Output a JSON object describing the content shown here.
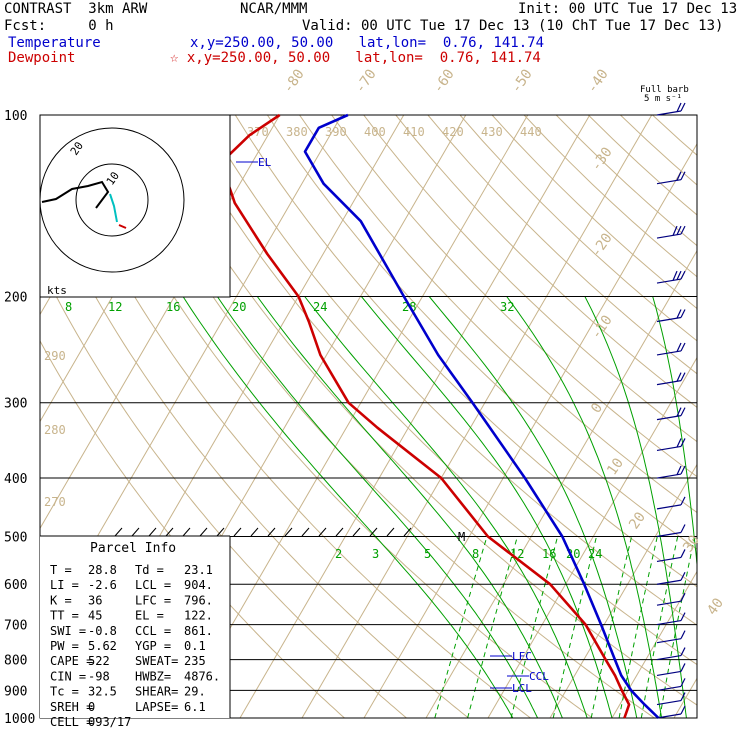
{
  "header": {
    "model": "CONTRAST  3km ARW",
    "center": "NCAR/MMM",
    "init": "Init: 00 UTC Tue 17 Dec 13",
    "fcst": "Fcst:     0 h",
    "valid": "Valid: 00 UTC Tue 17 Dec 13 (10 ChT Tue 17 Dec 13)",
    "temp_label": "Temperature",
    "temp_loc": "x,y=250.00, 50.00   lat,lon=  0.76, 141.74",
    "dew_label": "Dewpoint",
    "dew_loc": "☆ x,y=250.00, 50.00   lat,lon=  0.76, 141.74",
    "barb_title_1": "Full barb",
    "barb_title_2": "5 m s⁻¹"
  },
  "colors": {
    "temperature": "#0000cc",
    "dewpoint": "#cc0000",
    "isotherm": "#c8b48c",
    "dry_adiabat": "#c8b48c",
    "moist_adiabat": "#00a000",
    "mixing_ratio": "#00a000",
    "isobar": "#000000",
    "wind_barb": "#000080"
  },
  "chart_data": {
    "type": "skew-t",
    "pressure_levels": [
      100,
      200,
      300,
      400,
      500,
      600,
      700,
      800,
      900,
      1000
    ],
    "isotherm_labels": [
      "-80",
      "-70",
      "-60",
      "-50",
      "-40",
      "-30",
      "-20",
      "-10",
      "0",
      "10",
      "20",
      "30",
      "40"
    ],
    "theta_labels": [
      "370",
      "380",
      "390",
      "400",
      "410",
      "420",
      "430",
      "440"
    ],
    "theta_left_labels": [
      "290",
      "280",
      "270"
    ],
    "moist_labels": [
      "8",
      "12",
      "16",
      "20",
      "24",
      "28",
      "32"
    ],
    "mixing_labels": [
      "2",
      "3",
      "5",
      "8",
      "12",
      "16",
      "20",
      "24"
    ],
    "temperature": [
      {
        "p": 1000,
        "t": 27.5
      },
      {
        "p": 950,
        "t": 24.0
      },
      {
        "p": 900,
        "t": 20.5
      },
      {
        "p": 850,
        "t": 17.5
      },
      {
        "p": 800,
        "t": 15.0
      },
      {
        "p": 700,
        "t": 9.5
      },
      {
        "p": 600,
        "t": 3.0
      },
      {
        "p": 500,
        "t": -5.0
      },
      {
        "p": 400,
        "t": -16.5
      },
      {
        "p": 300,
        "t": -32.0
      },
      {
        "p": 250,
        "t": -42.0
      },
      {
        "p": 200,
        "t": -53.0
      },
      {
        "p": 150,
        "t": -67.0
      },
      {
        "p": 130,
        "t": -76.5
      },
      {
        "p": 115,
        "t": -82.5
      },
      {
        "p": 105,
        "t": -82.5
      },
      {
        "p": 100,
        "t": -79.0
      }
    ],
    "dewpoint": [
      {
        "p": 1000,
        "t": 22.0
      },
      {
        "p": 950,
        "t": 21.5
      },
      {
        "p": 900,
        "t": 19.0
      },
      {
        "p": 850,
        "t": 16.5
      },
      {
        "p": 800,
        "t": 13.5
      },
      {
        "p": 700,
        "t": 7.0
      },
      {
        "p": 600,
        "t": -2.5
      },
      {
        "p": 500,
        "t": -17.0
      },
      {
        "p": 400,
        "t": -30.0
      },
      {
        "p": 330,
        "t": -45.0
      },
      {
        "p": 300,
        "t": -52.0
      },
      {
        "p": 250,
        "t": -61.0
      },
      {
        "p": 220,
        "t": -66.0
      },
      {
        "p": 200,
        "t": -70.0
      },
      {
        "p": 170,
        "t": -79.0
      },
      {
        "p": 140,
        "t": -89.0
      },
      {
        "p": 120,
        "t": -95.0
      },
      {
        "p": 108,
        "t": -93.0
      },
      {
        "p": 100,
        "t": -90.0
      }
    ],
    "markers": [
      {
        "label": "EL",
        "p": 122
      },
      {
        "label": "LFC",
        "p": 796
      },
      {
        "label": "CCL",
        "p": 861
      },
      {
        "label": "LCL",
        "p": 904
      }
    ],
    "freezing_mark": {
      "label": "M",
      "p": 500
    },
    "hodograph": {
      "ring_labels": [
        "20",
        "10"
      ],
      "unit_label": "kts"
    },
    "wind_barbs": [
      {
        "p": 100,
        "speed": 12
      },
      {
        "p": 130,
        "speed": 12
      },
      {
        "p": 160,
        "speed": 13
      },
      {
        "p": 190,
        "speed": 15
      },
      {
        "p": 220,
        "speed": 12
      },
      {
        "p": 250,
        "speed": 10
      },
      {
        "p": 280,
        "speed": 9
      },
      {
        "p": 320,
        "speed": 10
      },
      {
        "p": 360,
        "speed": 10
      },
      {
        "p": 400,
        "speed": 8
      },
      {
        "p": 450,
        "speed": 7
      },
      {
        "p": 500,
        "speed": 6
      },
      {
        "p": 550,
        "speed": 5
      },
      {
        "p": 600,
        "speed": 5
      },
      {
        "p": 650,
        "speed": 5
      },
      {
        "p": 700,
        "speed": 4
      },
      {
        "p": 750,
        "speed": 4
      },
      {
        "p": 800,
        "speed": 4
      },
      {
        "p": 850,
        "speed": 5
      },
      {
        "p": 900,
        "speed": 6
      },
      {
        "p": 950,
        "speed": 7
      },
      {
        "p": 1000,
        "speed": 6
      }
    ]
  },
  "parcel_info": {
    "title": "Parcel Info",
    "rows": [
      [
        "T   =",
        "28.8",
        "Td =",
        "23.1"
      ],
      [
        "LI  =",
        "-2.6",
        "LCL =",
        "904."
      ],
      [
        "K   =",
        "36",
        "LFC =",
        "796."
      ],
      [
        "TT  =",
        "45",
        "EL  =",
        "122."
      ],
      [
        "SWI =",
        "-0.8",
        "CCL =",
        "861."
      ],
      [
        "PW  =",
        "5.62",
        "YGP =",
        "0.1"
      ],
      [
        "CAPE =",
        "522",
        "SWEAT=",
        "235"
      ],
      [
        "CIN =",
        "-98",
        "HWBZ=",
        "4876."
      ],
      [
        "Tc  =",
        "32.5",
        "SHEAR=",
        "29."
      ],
      [
        "SREH =",
        "0",
        "LAPSE=",
        "6.1"
      ],
      [
        "CELL =",
        "093/17",
        "",
        ""
      ]
    ]
  }
}
